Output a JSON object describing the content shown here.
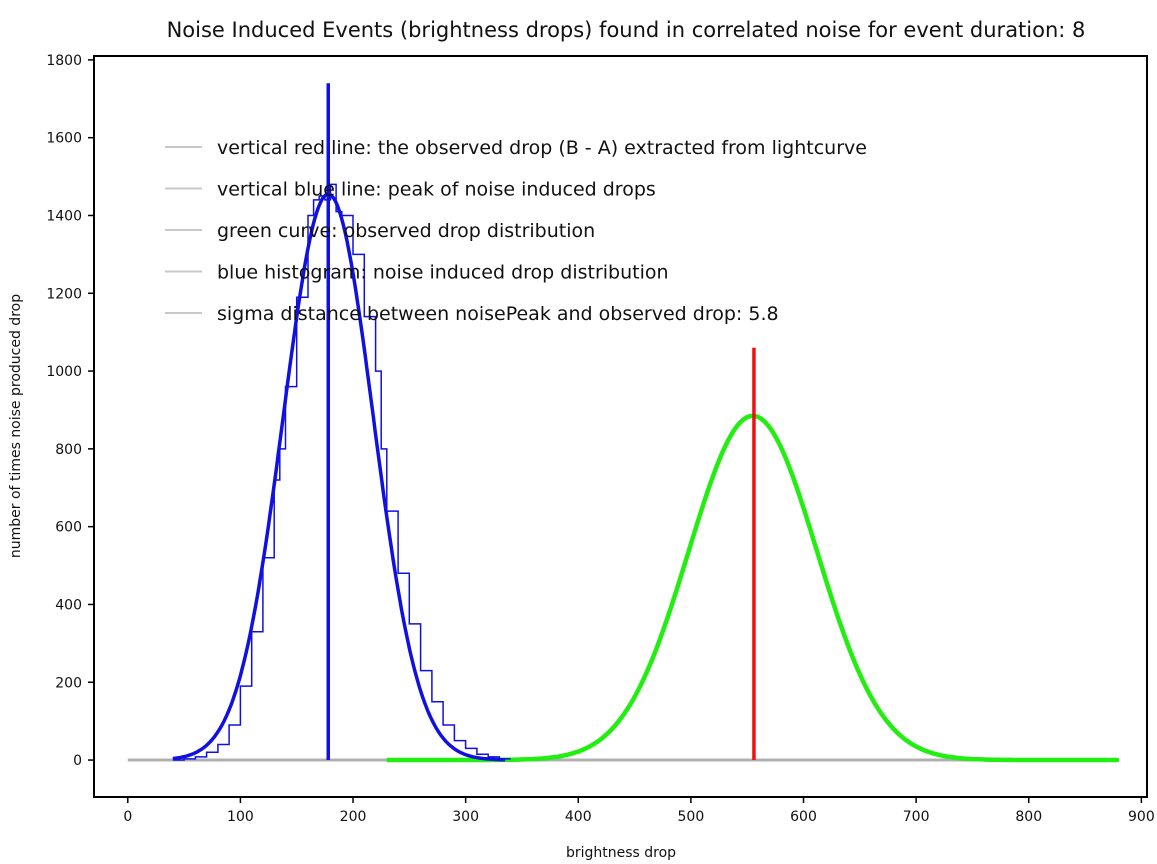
{
  "chart_data": {
    "type": "line",
    "title": "Noise Induced Events (brightness drops) found in correlated noise for event duration: 8",
    "xlabel": "brightness drop",
    "ylabel": "number of times noise produced drop",
    "xlim": [
      -30,
      905
    ],
    "ylim": [
      -95,
      1810
    ],
    "x_ticks": [
      0,
      100,
      200,
      300,
      400,
      500,
      600,
      700,
      800,
      900
    ],
    "y_ticks": [
      0,
      200,
      400,
      600,
      800,
      1000,
      1200,
      1400,
      1600,
      1800
    ],
    "grid": false,
    "legend_position": "top-left",
    "legend": [
      "vertical red line: the observed drop (B - A) extracted from lightcurve",
      "vertical blue line: peak of noise induced drops",
      "green curve: observed drop distribution",
      "blue histogram: noise induced drop distribution",
      "sigma distance between noisePeak and observed drop: 5.8"
    ],
    "colors": {
      "blue": "#1010e0",
      "red": "#ee1111",
      "green": "#22ee11",
      "gray": "#b0b0b0"
    },
    "series": [
      {
        "name": "blue histogram",
        "kind": "histogram",
        "color": "#1010e0",
        "x": [
          40,
          50,
          60,
          70,
          80,
          90,
          100,
          110,
          120,
          130,
          135,
          140,
          150,
          160,
          165,
          170,
          175,
          180,
          185,
          190,
          200,
          210,
          220,
          225,
          230,
          240,
          250,
          260,
          270,
          280,
          290,
          300,
          310,
          320,
          330
        ],
        "values": [
          0,
          3,
          8,
          20,
          40,
          90,
          190,
          330,
          520,
          720,
          800,
          960,
          1190,
          1400,
          1440,
          1450,
          1440,
          1480,
          1410,
          1400,
          1300,
          1140,
          1000,
          800,
          640,
          480,
          350,
          230,
          150,
          90,
          50,
          30,
          15,
          8,
          3
        ]
      },
      {
        "name": "blue fit",
        "kind": "gaussian",
        "color": "#1010e0",
        "mean": 178,
        "sigma": 40,
        "amplitude": 1455,
        "x_range": [
          40,
          335
        ]
      },
      {
        "name": "green curve",
        "kind": "gaussian",
        "color": "#22ee11",
        "mean": 555,
        "sigma": 57,
        "amplitude": 885,
        "x_range": [
          230,
          880
        ]
      },
      {
        "name": "vertical blue line",
        "kind": "vline",
        "color": "#1010e0",
        "x": 178,
        "y_range": [
          0,
          1740
        ]
      },
      {
        "name": "vertical red line",
        "kind": "vline",
        "color": "#ee1111",
        "x": 556,
        "y_range": [
          0,
          1060
        ]
      },
      {
        "name": "zero baseline",
        "kind": "hline",
        "color": "#b0b0b0",
        "y": 0,
        "x_range": [
          0,
          880
        ]
      }
    ]
  }
}
